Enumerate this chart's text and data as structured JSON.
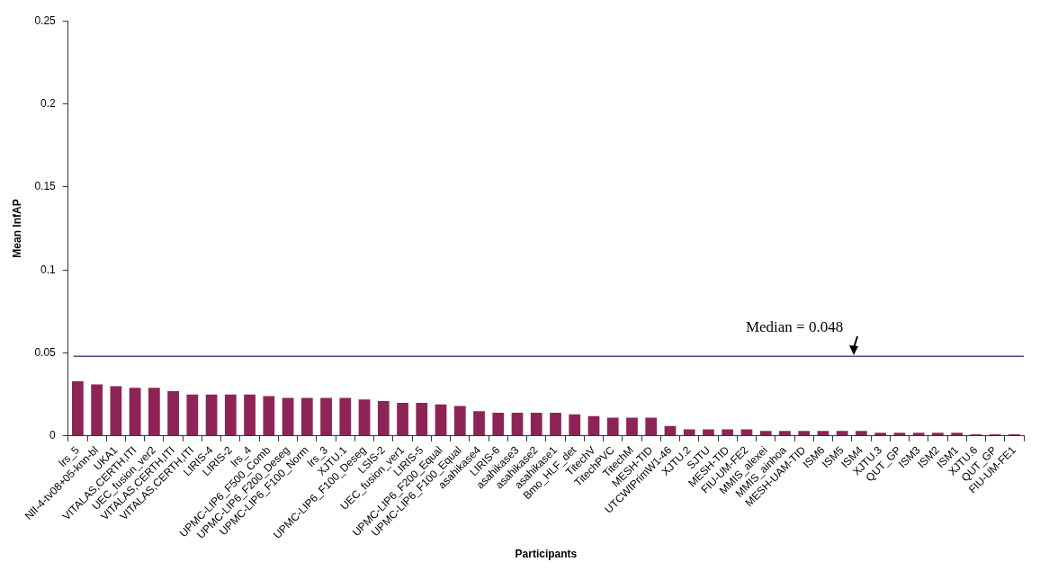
{
  "chart_data": {
    "type": "bar",
    "xlabel": "Participants",
    "ylabel": "Mean InfAP",
    "categories": [
      "lrs_5",
      "NII-4-tv08+05-knn-bl",
      "UKA1",
      "VITALAS,CERTH,ITI",
      "UEC_fusion_ver2",
      "VITALAS,CERTH,ITI",
      "VITALAS,CERTH,ITI",
      "LIRIS-4",
      "LIRIS-2",
      "lrs_4",
      "UPMC-LIP6_F500_Comb",
      "UPMC-LIP6_F200_Deseg",
      "UPMC-LIP6_F100_Norm",
      "lrs_3",
      "XJTU.1",
      "UPMC-LIP6_F100_Deseg",
      "LSIS-2",
      "UEC_fusion_ver1",
      "LIRIS-5",
      "UPMC-LIP6_F200_Equal",
      "UPMC-LIP6_F100_Equal",
      "asahikase4",
      "LIRIS-6",
      "asahikase3",
      "asahikase2",
      "asahikase1",
      "Bmo_HLF_det",
      "TitechV",
      "TitechPVC",
      "TitechM",
      "MESH-TID",
      "UTCWIPrimW1-46",
      "XJTU.2",
      "SJTU",
      "MESH-TID",
      "FIU-UM-FE2",
      "MMIS_alexei",
      "MMIS_ainhoa",
      "MESH-UAM-TID",
      "ISM6",
      "ISM5",
      "ISM4",
      "XJTU.3",
      "QUT_GP",
      "ISM3",
      "ISM2",
      "ISM1",
      "XJTU.6",
      "QUT_GP",
      "FIU-UM-FE1"
    ],
    "values": [
      0.033,
      0.031,
      0.03,
      0.029,
      0.029,
      0.027,
      0.025,
      0.025,
      0.025,
      0.025,
      0.024,
      0.023,
      0.023,
      0.023,
      0.023,
      0.022,
      0.021,
      0.02,
      0.02,
      0.019,
      0.018,
      0.015,
      0.014,
      0.014,
      0.014,
      0.014,
      0.013,
      0.012,
      0.011,
      0.011,
      0.011,
      0.006,
      0.004,
      0.004,
      0.004,
      0.004,
      0.003,
      0.003,
      0.003,
      0.003,
      0.003,
      0.003,
      0.002,
      0.002,
      0.002,
      0.002,
      0.002,
      0.001,
      0.001,
      0.001
    ],
    "color": "#8e2456",
    "ylim": [
      0,
      0.25
    ],
    "yticks": [
      0,
      0.05,
      0.1,
      0.15,
      0.2,
      0.25
    ],
    "ref_lines": [
      {
        "axis": "y",
        "value": 0.048,
        "label": "Median = 0.048",
        "color": "#4a4a8c"
      }
    ]
  }
}
